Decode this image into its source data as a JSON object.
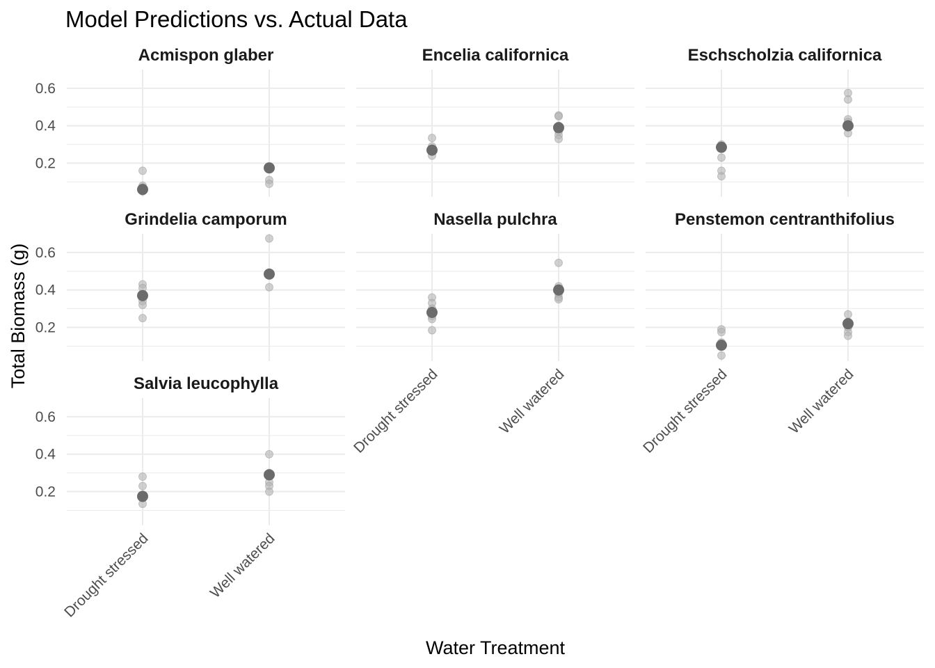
{
  "chart_data": {
    "type": "scatter",
    "title": "Model Predictions vs. Actual Data",
    "xlabel": "Water Treatment",
    "ylabel": "Total Biomass (g)",
    "categories": [
      "Drought stressed",
      "Well watered"
    ],
    "y_ticks": [
      "0.2",
      "0.4",
      "0.6"
    ],
    "y_tick_values": [
      0.2,
      0.4,
      0.6
    ],
    "ylim": [
      0.02,
      0.7
    ],
    "grid": true,
    "colors": {
      "observed": "#b3b3b3",
      "predicted": "#6b6b6b",
      "grid": "#ebebeb"
    },
    "facets": [
      {
        "name": "Acmispon glaber",
        "observed": {
          "Drought stressed": [
            0.16,
            0.08,
            0.07,
            0.06,
            0.05
          ],
          "Well watered": [
            0.18,
            0.17,
            0.11,
            0.09
          ]
        },
        "predicted": {
          "Drought stressed": 0.06,
          "Well watered": 0.175
        }
      },
      {
        "name": "Encelia californica",
        "observed": {
          "Drought stressed": [
            0.335,
            0.29,
            0.27,
            0.24
          ],
          "Well watered": [
            0.455,
            0.45,
            0.4,
            0.37,
            0.35,
            0.33
          ]
        },
        "predicted": {
          "Drought stressed": 0.27,
          "Well watered": 0.39
        }
      },
      {
        "name": "Eschscholzia californica",
        "observed": {
          "Drought stressed": [
            0.3,
            0.29,
            0.23,
            0.16,
            0.13
          ],
          "Well watered": [
            0.575,
            0.54,
            0.435,
            0.42,
            0.36
          ]
        },
        "predicted": {
          "Drought stressed": 0.285,
          "Well watered": 0.4
        }
      },
      {
        "name": "Grindelia camporum",
        "observed": {
          "Drought stressed": [
            0.43,
            0.41,
            0.37,
            0.34,
            0.32,
            0.25
          ],
          "Well watered": [
            0.675,
            0.49,
            0.48,
            0.415
          ]
        },
        "predicted": {
          "Drought stressed": 0.37,
          "Well watered": 0.485
        }
      },
      {
        "name": "Nasella pulchra",
        "observed": {
          "Drought stressed": [
            0.36,
            0.33,
            0.3,
            0.26,
            0.245,
            0.185
          ],
          "Well watered": [
            0.545,
            0.42,
            0.38,
            0.36,
            0.35
          ]
        },
        "predicted": {
          "Drought stressed": 0.28,
          "Well watered": 0.4
        }
      },
      {
        "name": "Penstemon centranthifolius",
        "observed": {
          "Drought stressed": [
            0.19,
            0.175,
            0.12,
            0.1,
            0.05
          ],
          "Well watered": [
            0.27,
            0.23,
            0.2,
            0.175,
            0.155
          ]
        },
        "predicted": {
          "Drought stressed": 0.105,
          "Well watered": 0.22
        }
      },
      {
        "name": "Salvia leucophylla",
        "observed": {
          "Drought stressed": [
            0.28,
            0.23,
            0.18,
            0.165,
            0.135
          ],
          "Well watered": [
            0.4,
            0.3,
            0.25,
            0.23,
            0.2
          ]
        },
        "predicted": {
          "Drought stressed": 0.175,
          "Well watered": 0.29
        }
      }
    ]
  }
}
